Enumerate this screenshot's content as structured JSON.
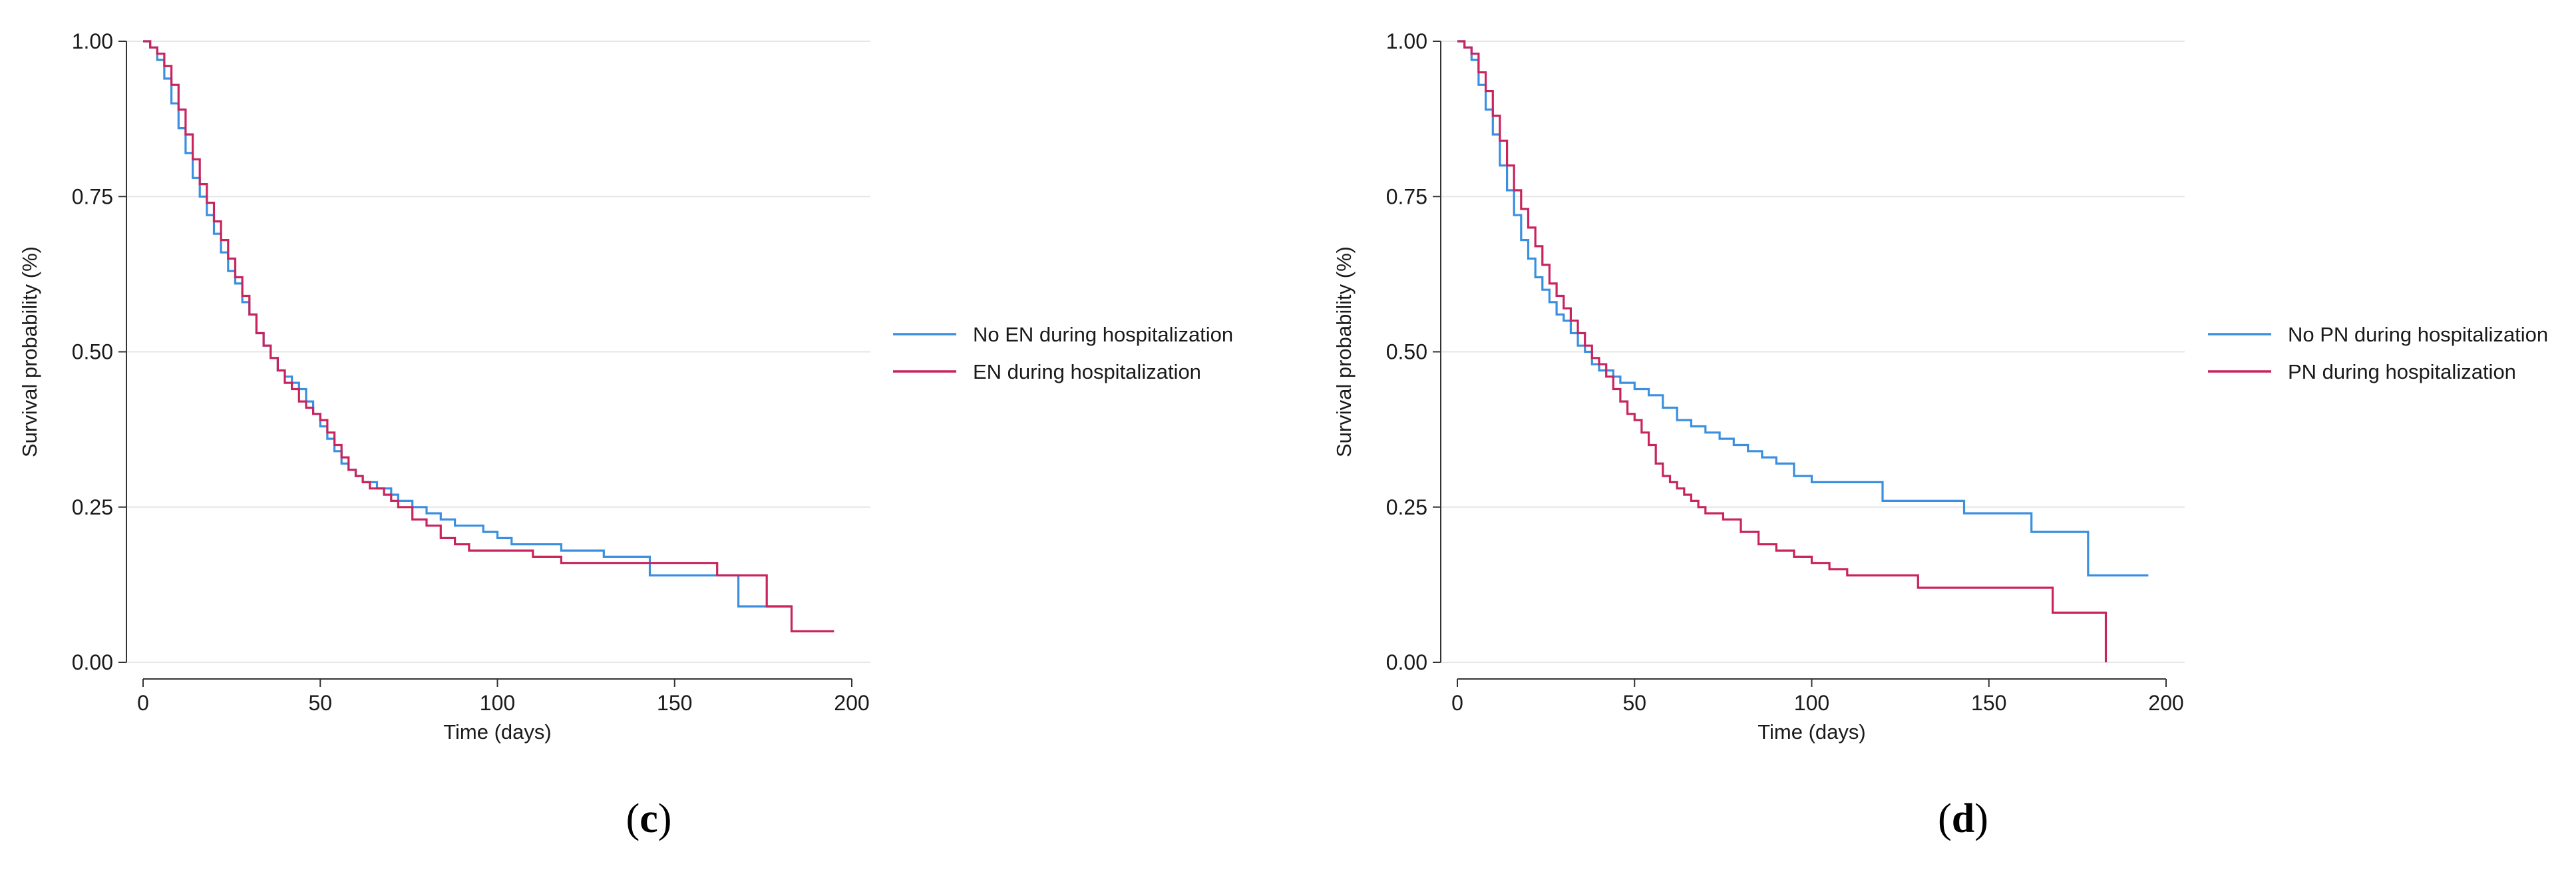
{
  "colors": {
    "blue": "#3a8fe0",
    "crimson": "#c8245e",
    "grid": "#e6e6e6",
    "axis": "#333333"
  },
  "chart_data": [
    {
      "type": "line",
      "panel_label": {
        "open": "(",
        "letter": "c",
        "close": ")"
      },
      "xlabel": "Time (days)",
      "ylabel": "Survival probability (%)",
      "xlim": [
        0,
        200
      ],
      "ylim": [
        0,
        1
      ],
      "xticks": [
        0,
        50,
        100,
        150,
        200
      ],
      "yticks": [
        0,
        0.25,
        0.5,
        0.75,
        1.0
      ],
      "xtick_labels": [
        "0",
        "50",
        "100",
        "150",
        "200"
      ],
      "ytick_labels": [
        "0.00",
        "0.25",
        "0.50",
        "0.75",
        "1.00"
      ],
      "grid": true,
      "legend_position": "right",
      "series": [
        {
          "name": "No EN during hospitalization",
          "color": "#3a8fe0",
          "x": [
            0,
            2,
            4,
            6,
            8,
            10,
            12,
            14,
            16,
            18,
            20,
            22,
            24,
            26,
            28,
            30,
            32,
            34,
            36,
            38,
            40,
            42,
            44,
            46,
            48,
            50,
            52,
            54,
            56,
            58,
            60,
            62,
            64,
            66,
            68,
            70,
            72,
            76,
            80,
            84,
            88,
            92,
            96,
            100,
            104,
            110,
            118,
            130,
            143,
            160,
            168,
            172,
            178,
            183
          ],
          "y": [
            1.0,
            0.99,
            0.97,
            0.94,
            0.9,
            0.86,
            0.82,
            0.78,
            0.75,
            0.72,
            0.69,
            0.66,
            0.63,
            0.61,
            0.58,
            0.56,
            0.53,
            0.51,
            0.49,
            0.47,
            0.46,
            0.45,
            0.44,
            0.42,
            0.4,
            0.38,
            0.36,
            0.34,
            0.32,
            0.31,
            0.3,
            0.29,
            0.29,
            0.28,
            0.28,
            0.27,
            0.26,
            0.25,
            0.24,
            0.23,
            0.22,
            0.22,
            0.21,
            0.2,
            0.19,
            0.19,
            0.18,
            0.17,
            0.14,
            0.14,
            0.09,
            0.09,
            0.09,
            0.09
          ]
        },
        {
          "name": "EN during hospitalization",
          "color": "#c8245e",
          "x": [
            0,
            2,
            4,
            6,
            8,
            10,
            12,
            14,
            16,
            18,
            20,
            22,
            24,
            26,
            28,
            30,
            32,
            34,
            36,
            38,
            40,
            42,
            44,
            46,
            48,
            50,
            52,
            54,
            56,
            58,
            60,
            62,
            64,
            66,
            68,
            70,
            72,
            76,
            80,
            84,
            88,
            92,
            96,
            100,
            110,
            118,
            130,
            143,
            162,
            176,
            183,
            190,
            195
          ],
          "y": [
            1.0,
            0.99,
            0.98,
            0.96,
            0.93,
            0.89,
            0.85,
            0.81,
            0.77,
            0.74,
            0.71,
            0.68,
            0.65,
            0.62,
            0.59,
            0.56,
            0.53,
            0.51,
            0.49,
            0.47,
            0.45,
            0.44,
            0.42,
            0.41,
            0.4,
            0.39,
            0.37,
            0.35,
            0.33,
            0.31,
            0.3,
            0.29,
            0.28,
            0.28,
            0.27,
            0.26,
            0.25,
            0.23,
            0.22,
            0.2,
            0.19,
            0.18,
            0.18,
            0.18,
            0.17,
            0.16,
            0.16,
            0.16,
            0.14,
            0.09,
            0.05,
            0.05,
            0.05
          ]
        }
      ]
    },
    {
      "type": "line",
      "panel_label": {
        "open": "(",
        "letter": "d",
        "close": ")"
      },
      "xlabel": "Time (days)",
      "ylabel": "Survival probability (%)",
      "xlim": [
        0,
        200
      ],
      "ylim": [
        0,
        1
      ],
      "xticks": [
        0,
        50,
        100,
        150,
        200
      ],
      "yticks": [
        0,
        0.25,
        0.5,
        0.75,
        1.0
      ],
      "xtick_labels": [
        "0",
        "50",
        "100",
        "150",
        "200"
      ],
      "ytick_labels": [
        "0.00",
        "0.25",
        "0.50",
        "0.75",
        "1.00"
      ],
      "grid": true,
      "legend_position": "right",
      "series": [
        {
          "name": "No PN during hospitalization",
          "color": "#3a8fe0",
          "x": [
            0,
            2,
            4,
            6,
            8,
            10,
            12,
            14,
            16,
            18,
            20,
            22,
            24,
            26,
            28,
            30,
            32,
            34,
            36,
            38,
            40,
            42,
            44,
            46,
            48,
            50,
            54,
            58,
            62,
            66,
            70,
            74,
            78,
            82,
            86,
            90,
            95,
            100,
            110,
            120,
            143,
            162,
            168,
            178,
            195
          ],
          "y": [
            1.0,
            0.99,
            0.97,
            0.93,
            0.89,
            0.85,
            0.8,
            0.76,
            0.72,
            0.68,
            0.65,
            0.62,
            0.6,
            0.58,
            0.56,
            0.55,
            0.53,
            0.51,
            0.5,
            0.48,
            0.47,
            0.47,
            0.46,
            0.45,
            0.45,
            0.44,
            0.43,
            0.41,
            0.39,
            0.38,
            0.37,
            0.36,
            0.35,
            0.34,
            0.33,
            0.32,
            0.3,
            0.29,
            0.29,
            0.26,
            0.24,
            0.21,
            0.21,
            0.14,
            0.14
          ]
        },
        {
          "name": "PN during hospitalization",
          "color": "#c8245e",
          "x": [
            0,
            2,
            4,
            6,
            8,
            10,
            12,
            14,
            16,
            18,
            20,
            22,
            24,
            26,
            28,
            30,
            32,
            34,
            36,
            38,
            40,
            42,
            44,
            46,
            48,
            50,
            52,
            54,
            56,
            58,
            60,
            62,
            64,
            66,
            68,
            70,
            75,
            80,
            85,
            90,
            95,
            100,
            105,
            110,
            120,
            130,
            150,
            168,
            178,
            183
          ],
          "y": [
            1.0,
            0.99,
            0.98,
            0.95,
            0.92,
            0.88,
            0.84,
            0.8,
            0.76,
            0.73,
            0.7,
            0.67,
            0.64,
            0.61,
            0.59,
            0.57,
            0.55,
            0.53,
            0.51,
            0.49,
            0.48,
            0.46,
            0.44,
            0.42,
            0.4,
            0.39,
            0.37,
            0.35,
            0.32,
            0.3,
            0.29,
            0.28,
            0.27,
            0.26,
            0.25,
            0.24,
            0.23,
            0.21,
            0.19,
            0.18,
            0.17,
            0.16,
            0.15,
            0.14,
            0.14,
            0.12,
            0.12,
            0.08,
            0.08,
            0.0
          ]
        }
      ]
    }
  ]
}
